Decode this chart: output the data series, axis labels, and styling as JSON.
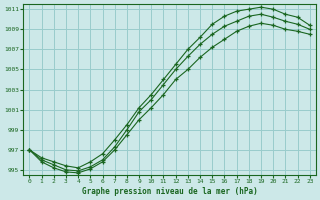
{
  "title": "Graphe pression niveau de la mer (hPa)",
  "bg_color": "#cce8e8",
  "grid_color": "#99cccc",
  "line_color": "#1a6620",
  "xlim": [
    -0.5,
    23.5
  ],
  "ylim": [
    994.5,
    1011.5
  ],
  "xticks": [
    0,
    1,
    2,
    3,
    4,
    5,
    6,
    7,
    8,
    9,
    10,
    11,
    12,
    13,
    14,
    15,
    16,
    17,
    18,
    19,
    20,
    21,
    22,
    23
  ],
  "yticks": [
    995,
    997,
    999,
    1001,
    1003,
    1005,
    1007,
    1009,
    1011
  ],
  "line_max": [
    997.0,
    996.2,
    995.8,
    995.4,
    995.2,
    995.8,
    996.6,
    998.0,
    999.5,
    1001.2,
    1002.5,
    1004.0,
    1005.5,
    1007.0,
    1008.2,
    1009.5,
    1010.3,
    1010.8,
    1011.0,
    1011.2,
    1011.0,
    1010.5,
    1010.2,
    1009.4
  ],
  "line_mid": [
    997.0,
    996.0,
    995.5,
    995.0,
    994.9,
    995.3,
    996.0,
    997.3,
    999.0,
    1000.8,
    1002.0,
    1003.5,
    1005.0,
    1006.3,
    1007.5,
    1008.5,
    1009.3,
    1009.8,
    1010.3,
    1010.5,
    1010.2,
    1009.8,
    1009.5,
    1009.0
  ],
  "line_min": [
    997.0,
    995.8,
    995.2,
    994.8,
    994.7,
    995.1,
    995.8,
    997.0,
    998.5,
    1000.0,
    1001.2,
    1002.5,
    1004.0,
    1005.0,
    1006.2,
    1007.2,
    1008.0,
    1008.8,
    1009.3,
    1009.6,
    1009.4,
    1009.0,
    1008.8,
    1008.5
  ]
}
